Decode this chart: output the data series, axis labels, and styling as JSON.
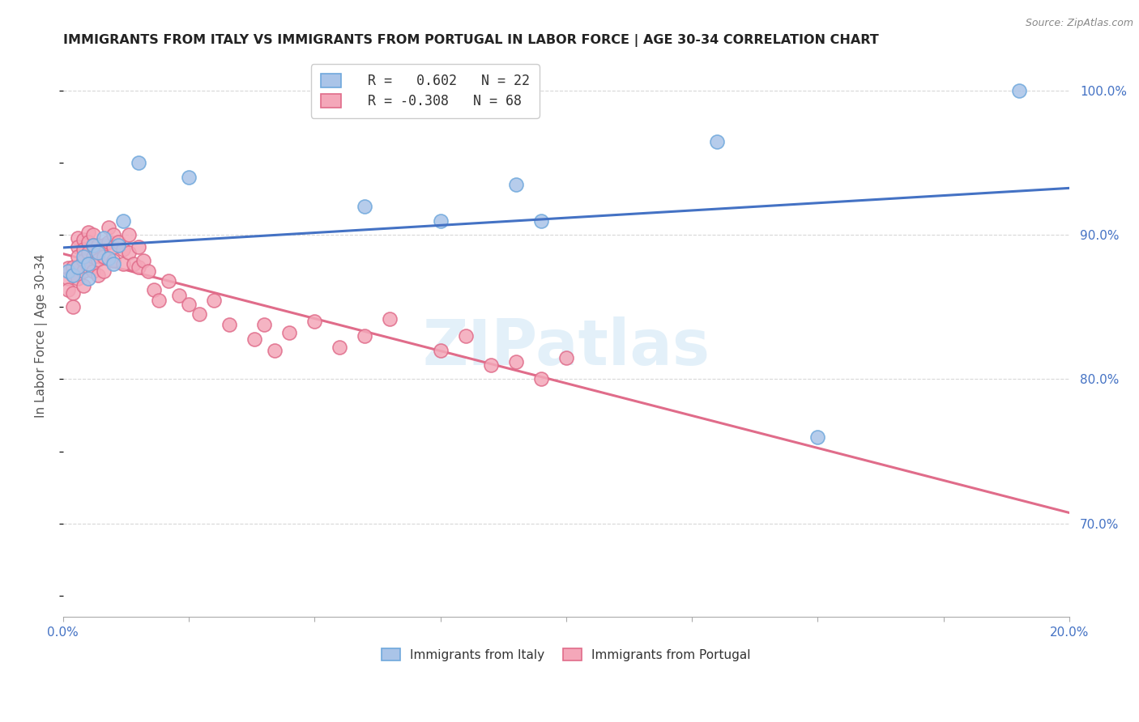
{
  "title": "IMMIGRANTS FROM ITALY VS IMMIGRANTS FROM PORTUGAL IN LABOR FORCE | AGE 30-34 CORRELATION CHART",
  "source": "Source: ZipAtlas.com",
  "ylabel": "In Labor Force | Age 30-34",
  "xlim": [
    0.0,
    0.2
  ],
  "ylim": [
    0.635,
    1.025
  ],
  "xticks": [
    0.0,
    0.025,
    0.05,
    0.075,
    0.1,
    0.125,
    0.15,
    0.175,
    0.2
  ],
  "yticks_right": [
    0.7,
    0.8,
    0.9,
    1.0
  ],
  "ytick_right_labels": [
    "70.0%",
    "80.0%",
    "90.0%",
    "100.0%"
  ],
  "italy_color": "#aac4e8",
  "portugal_color": "#f4a7b9",
  "italy_edge": "#6fa8dc",
  "portugal_edge": "#e06c8a",
  "trendline_italy_color": "#4472c4",
  "trendline_portugal_color": "#e06c8a",
  "legend_italy_label": "  R =   0.602   N = 22",
  "legend_portugal_label": "  R = -0.308   N = 68",
  "italy_scatter_x": [
    0.001,
    0.002,
    0.003,
    0.004,
    0.005,
    0.005,
    0.006,
    0.007,
    0.008,
    0.009,
    0.01,
    0.011,
    0.012,
    0.015,
    0.025,
    0.06,
    0.075,
    0.09,
    0.095,
    0.13,
    0.15,
    0.19
  ],
  "italy_scatter_y": [
    0.875,
    0.872,
    0.878,
    0.885,
    0.88,
    0.87,
    0.893,
    0.888,
    0.898,
    0.884,
    0.88,
    0.893,
    0.91,
    0.95,
    0.94,
    0.92,
    0.91,
    0.935,
    0.91,
    0.965,
    0.76,
    1.0
  ],
  "portugal_scatter_x": [
    0.001,
    0.001,
    0.001,
    0.002,
    0.002,
    0.002,
    0.002,
    0.003,
    0.003,
    0.003,
    0.003,
    0.003,
    0.004,
    0.004,
    0.004,
    0.004,
    0.004,
    0.005,
    0.005,
    0.005,
    0.005,
    0.006,
    0.006,
    0.006,
    0.006,
    0.007,
    0.007,
    0.007,
    0.008,
    0.008,
    0.008,
    0.009,
    0.009,
    0.01,
    0.01,
    0.01,
    0.011,
    0.012,
    0.012,
    0.013,
    0.013,
    0.014,
    0.015,
    0.015,
    0.016,
    0.017,
    0.018,
    0.019,
    0.021,
    0.023,
    0.025,
    0.027,
    0.03,
    0.033,
    0.038,
    0.04,
    0.042,
    0.045,
    0.05,
    0.055,
    0.06,
    0.065,
    0.075,
    0.08,
    0.085,
    0.09,
    0.095,
    0.1
  ],
  "portugal_scatter_y": [
    0.877,
    0.87,
    0.862,
    0.878,
    0.872,
    0.86,
    0.85,
    0.898,
    0.892,
    0.885,
    0.878,
    0.87,
    0.897,
    0.89,
    0.882,
    0.875,
    0.865,
    0.902,
    0.895,
    0.888,
    0.878,
    0.9,
    0.893,
    0.885,
    0.875,
    0.893,
    0.883,
    0.872,
    0.893,
    0.885,
    0.875,
    0.905,
    0.895,
    0.9,
    0.892,
    0.882,
    0.895,
    0.89,
    0.88,
    0.9,
    0.888,
    0.88,
    0.892,
    0.878,
    0.882,
    0.875,
    0.862,
    0.855,
    0.868,
    0.858,
    0.852,
    0.845,
    0.855,
    0.838,
    0.828,
    0.838,
    0.82,
    0.832,
    0.84,
    0.822,
    0.83,
    0.842,
    0.82,
    0.83,
    0.81,
    0.812,
    0.8,
    0.815
  ],
  "watermark": "ZIPatlas",
  "background_color": "#ffffff",
  "grid_color": "#d8d8d8",
  "title_color": "#222222",
  "source_color": "#888888",
  "label_color": "#555555",
  "axis_tick_color": "#4472c4"
}
